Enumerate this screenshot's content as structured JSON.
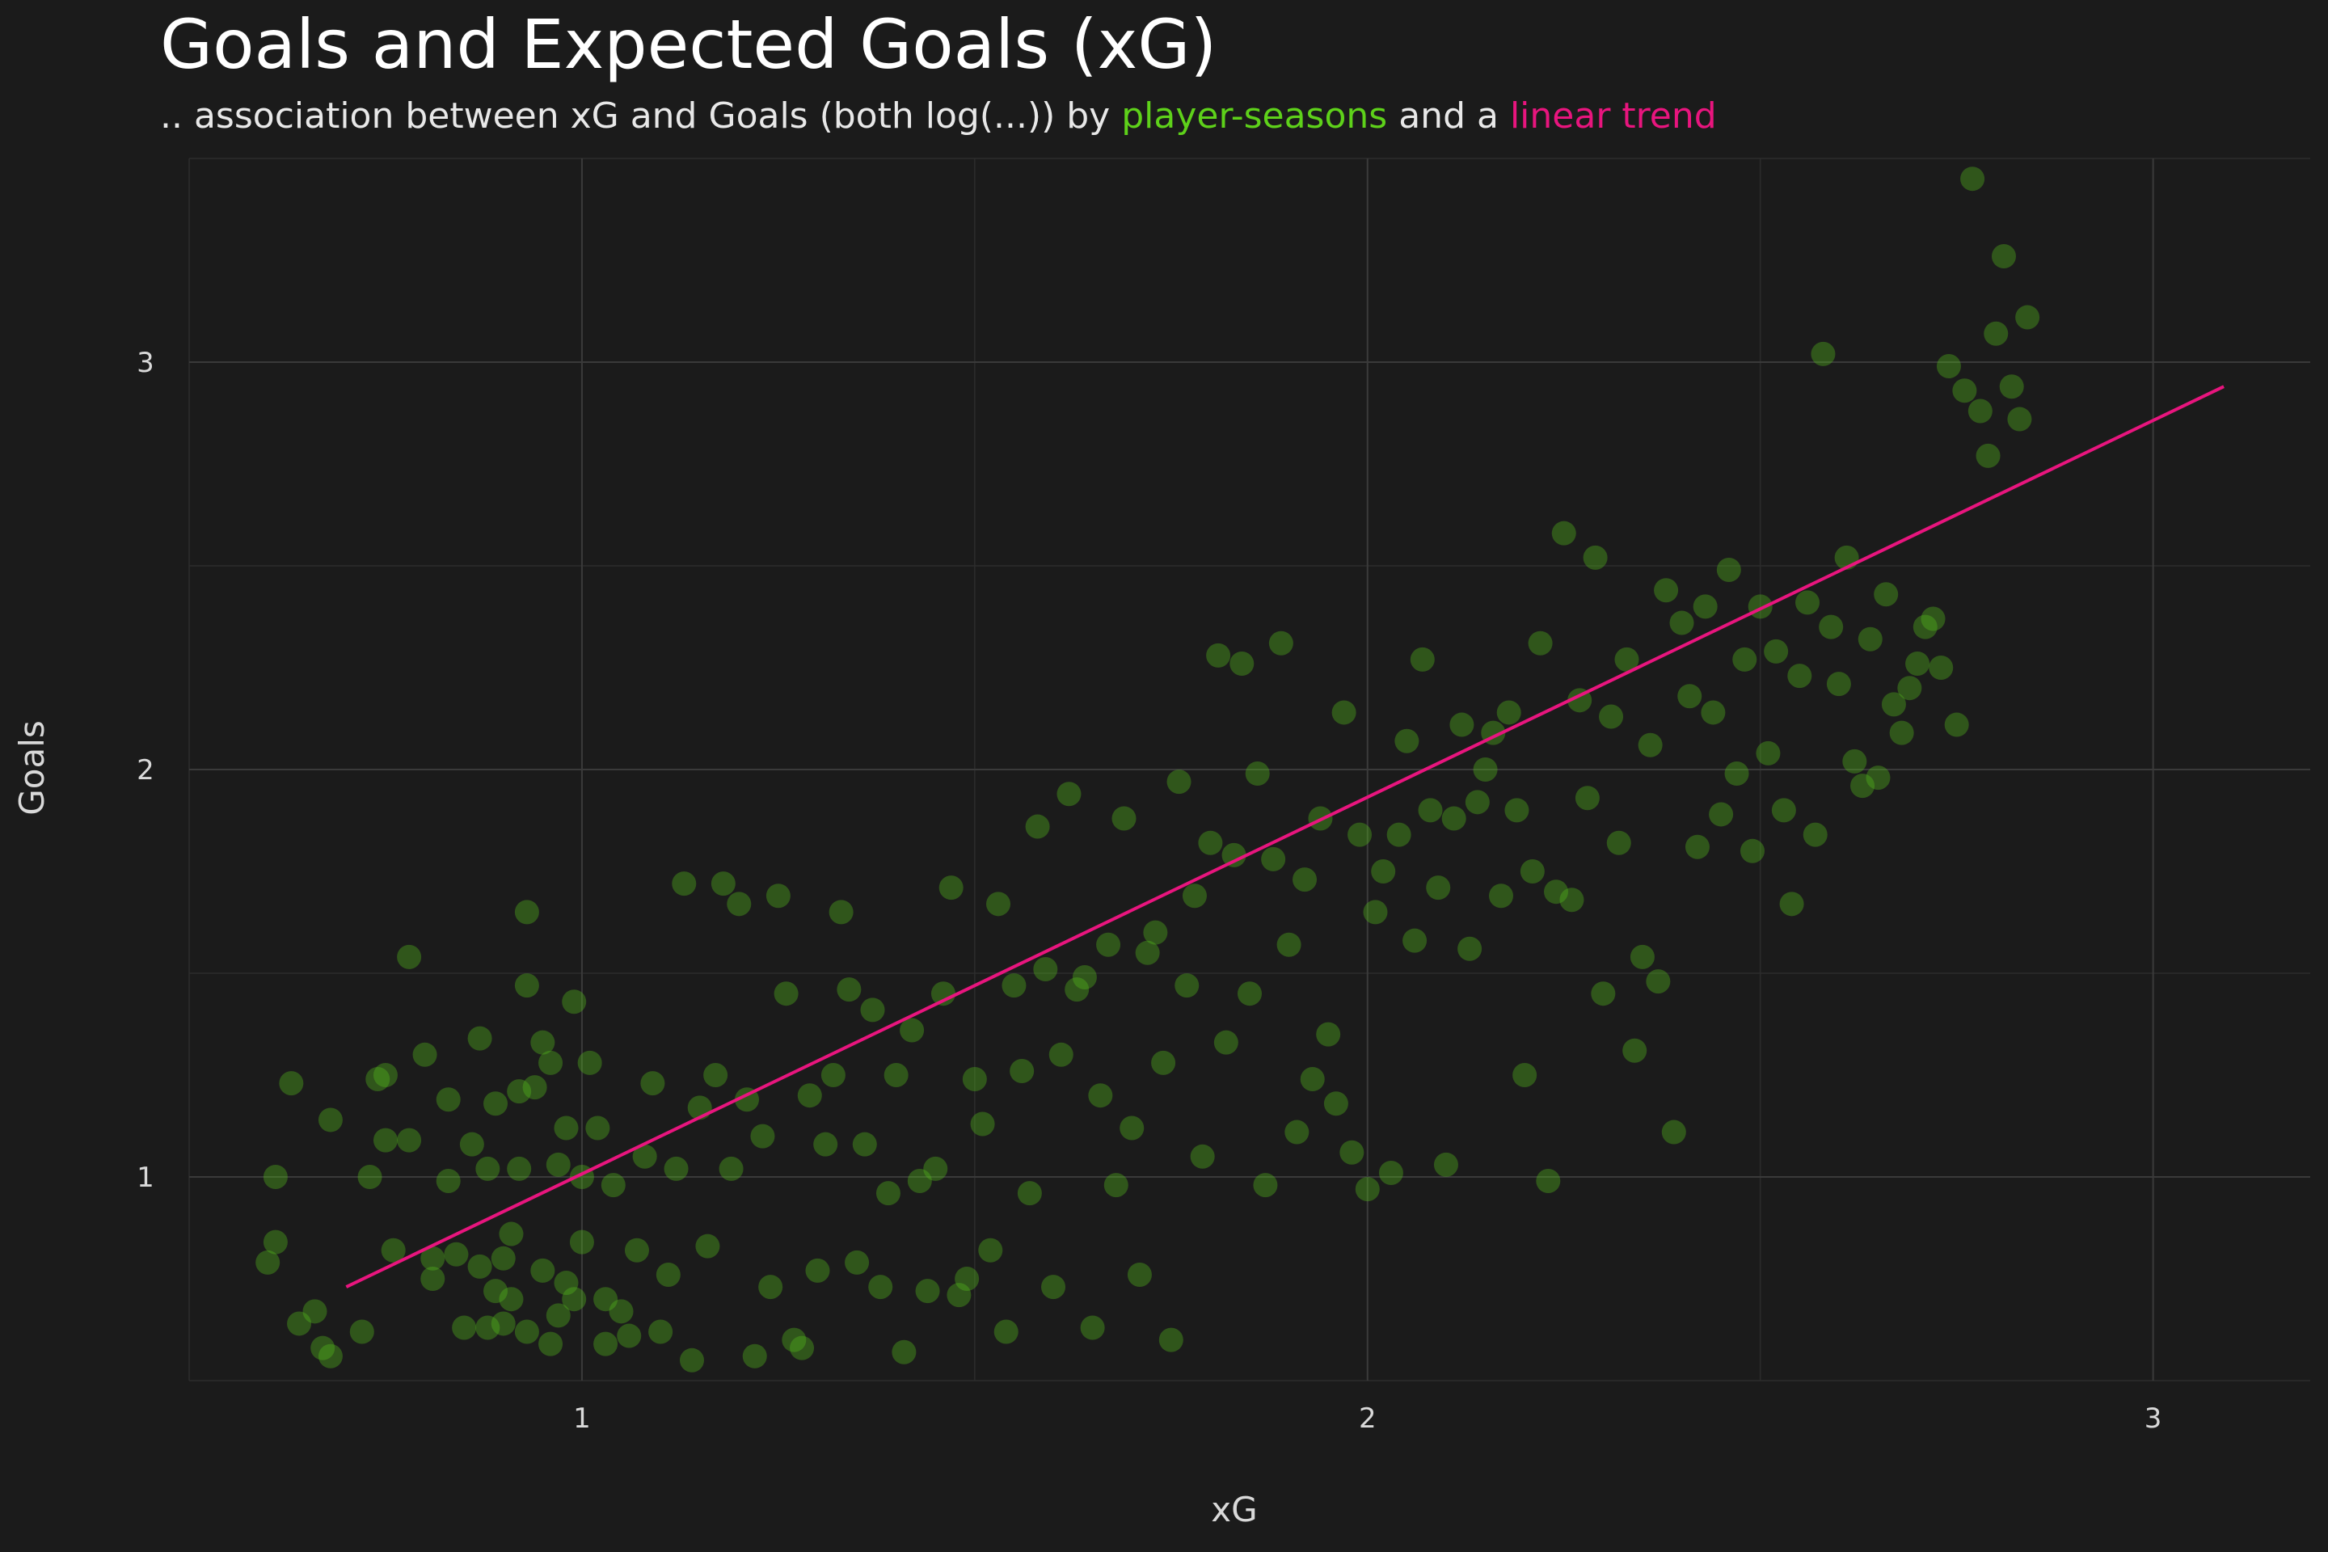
{
  "chart_data": {
    "type": "scatter",
    "title": "Goals and Expected Goals (xG)",
    "subtitle": {
      "prefix": ".. association between xG and Goals (both log(...)) by",
      "series_label": "player-seasons",
      "middle": "and a",
      "trend_label": "linear trend"
    },
    "xlabel": "xG",
    "ylabel": "Goals",
    "xlim": [
      0.5,
      3.2
    ],
    "ylim": [
      0.5,
      3.5
    ],
    "xticks": [
      1,
      2,
      3
    ],
    "yticks": [
      1,
      2,
      3
    ],
    "grid": true,
    "colors": {
      "points": "#54b81c",
      "trend": "#e8157e",
      "background": "#1b1b1b",
      "grid": "#3a3a3a"
    },
    "series": [
      {
        "name": "player-seasons",
        "points": [
          [
            0.6,
            0.79
          ],
          [
            0.61,
            0.84
          ],
          [
            0.61,
            1.0
          ],
          [
            0.63,
            1.23
          ],
          [
            0.64,
            0.64
          ],
          [
            0.66,
            0.67
          ],
          [
            0.67,
            0.58
          ],
          [
            0.68,
            0.56
          ],
          [
            0.68,
            1.14
          ],
          [
            0.72,
            0.62
          ],
          [
            0.73,
            1.0
          ],
          [
            0.74,
            1.24
          ],
          [
            0.75,
            1.25
          ],
          [
            0.75,
            1.09
          ],
          [
            0.76,
            0.82
          ],
          [
            0.78,
            1.09
          ],
          [
            0.78,
            1.54
          ],
          [
            0.8,
            1.3
          ],
          [
            0.81,
            0.8
          ],
          [
            0.81,
            0.75
          ],
          [
            0.83,
            1.19
          ],
          [
            0.83,
            0.99
          ],
          [
            0.84,
            0.81
          ],
          [
            0.85,
            0.63
          ],
          [
            0.86,
            1.08
          ],
          [
            0.87,
            1.34
          ],
          [
            0.87,
            0.78
          ],
          [
            0.88,
            1.02
          ],
          [
            0.88,
            0.63
          ],
          [
            0.89,
            1.18
          ],
          [
            0.89,
            0.72
          ],
          [
            0.9,
            0.64
          ],
          [
            0.9,
            0.8
          ],
          [
            0.91,
            0.7
          ],
          [
            0.91,
            0.86
          ],
          [
            0.92,
            1.21
          ],
          [
            0.92,
            1.02
          ],
          [
            0.93,
            1.65
          ],
          [
            0.93,
            1.47
          ],
          [
            0.93,
            0.62
          ],
          [
            0.94,
            1.22
          ],
          [
            0.95,
            1.33
          ],
          [
            0.95,
            0.77
          ],
          [
            0.96,
            0.59
          ],
          [
            0.96,
            1.28
          ],
          [
            0.97,
            1.03
          ],
          [
            0.97,
            0.66
          ],
          [
            0.98,
            0.74
          ],
          [
            0.98,
            1.12
          ],
          [
            0.99,
            1.43
          ],
          [
            0.99,
            0.7
          ],
          [
            1.0,
            0.84
          ],
          [
            1.0,
            1.0
          ],
          [
            1.01,
            1.28
          ],
          [
            1.02,
            1.12
          ],
          [
            1.03,
            0.7
          ],
          [
            1.03,
            0.59
          ],
          [
            1.04,
            0.98
          ],
          [
            1.05,
            0.67
          ],
          [
            1.06,
            0.61
          ],
          [
            1.07,
            0.82
          ],
          [
            1.08,
            1.05
          ],
          [
            1.09,
            1.23
          ],
          [
            1.1,
            0.62
          ],
          [
            1.11,
            0.76
          ],
          [
            1.12,
            1.02
          ],
          [
            1.13,
            1.72
          ],
          [
            1.14,
            0.55
          ],
          [
            1.15,
            1.17
          ],
          [
            1.16,
            0.83
          ],
          [
            1.17,
            1.25
          ],
          [
            1.18,
            1.72
          ],
          [
            1.19,
            1.02
          ],
          [
            1.2,
            1.67
          ],
          [
            1.21,
            1.19
          ],
          [
            1.22,
            0.56
          ],
          [
            1.23,
            1.1
          ],
          [
            1.24,
            0.73
          ],
          [
            1.25,
            1.69
          ],
          [
            1.26,
            1.45
          ],
          [
            1.27,
            0.6
          ],
          [
            1.28,
            0.58
          ],
          [
            1.29,
            1.2
          ],
          [
            1.3,
            0.77
          ],
          [
            1.31,
            1.08
          ],
          [
            1.32,
            1.25
          ],
          [
            1.33,
            1.65
          ],
          [
            1.34,
            1.46
          ],
          [
            1.35,
            0.79
          ],
          [
            1.36,
            1.08
          ],
          [
            1.37,
            1.41
          ],
          [
            1.38,
            0.73
          ],
          [
            1.39,
            0.96
          ],
          [
            1.4,
            1.25
          ],
          [
            1.41,
            0.57
          ],
          [
            1.42,
            1.36
          ],
          [
            1.43,
            0.99
          ],
          [
            1.44,
            0.72
          ],
          [
            1.45,
            1.02
          ],
          [
            1.46,
            1.45
          ],
          [
            1.47,
            1.71
          ],
          [
            1.48,
            0.71
          ],
          [
            1.49,
            0.75
          ],
          [
            1.5,
            1.24
          ],
          [
            1.51,
            1.13
          ],
          [
            1.52,
            0.82
          ],
          [
            1.53,
            1.67
          ],
          [
            1.54,
            0.62
          ],
          [
            1.55,
            1.47
          ],
          [
            1.56,
            1.26
          ],
          [
            1.57,
            0.96
          ],
          [
            1.58,
            1.86
          ],
          [
            1.59,
            1.51
          ],
          [
            1.6,
            0.73
          ],
          [
            1.61,
            1.3
          ],
          [
            1.62,
            1.94
          ],
          [
            1.63,
            1.46
          ],
          [
            1.64,
            1.49
          ],
          [
            1.65,
            0.63
          ],
          [
            1.66,
            1.2
          ],
          [
            1.67,
            1.57
          ],
          [
            1.68,
            0.98
          ],
          [
            1.69,
            1.88
          ],
          [
            1.7,
            1.12
          ],
          [
            1.71,
            0.76
          ],
          [
            1.72,
            1.55
          ],
          [
            1.73,
            1.6
          ],
          [
            1.74,
            1.28
          ],
          [
            1.75,
            0.6
          ],
          [
            1.76,
            1.97
          ],
          [
            1.77,
            1.47
          ],
          [
            1.78,
            1.69
          ],
          [
            1.79,
            1.05
          ],
          [
            1.8,
            1.82
          ],
          [
            1.81,
            2.28
          ],
          [
            1.82,
            1.33
          ],
          [
            1.83,
            1.79
          ],
          [
            1.84,
            2.26
          ],
          [
            1.85,
            1.45
          ],
          [
            1.86,
            1.99
          ],
          [
            1.87,
            0.98
          ],
          [
            1.88,
            1.78
          ],
          [
            1.89,
            2.31
          ],
          [
            1.9,
            1.57
          ],
          [
            1.91,
            1.11
          ],
          [
            1.92,
            1.73
          ],
          [
            1.93,
            1.24
          ],
          [
            1.94,
            1.88
          ],
          [
            1.95,
            1.35
          ],
          [
            1.96,
            1.18
          ],
          [
            1.97,
            2.14
          ],
          [
            1.98,
            1.06
          ],
          [
            1.99,
            1.84
          ],
          [
            2.0,
            0.97
          ],
          [
            2.01,
            1.65
          ],
          [
            2.02,
            1.75
          ],
          [
            2.03,
            1.01
          ],
          [
            2.04,
            1.84
          ],
          [
            2.05,
            2.07
          ],
          [
            2.06,
            1.58
          ],
          [
            2.07,
            2.27
          ],
          [
            2.08,
            1.9
          ],
          [
            2.09,
            1.71
          ],
          [
            2.1,
            1.03
          ],
          [
            2.11,
            1.88
          ],
          [
            2.12,
            2.11
          ],
          [
            2.13,
            1.56
          ],
          [
            2.14,
            1.92
          ],
          [
            2.15,
            2.0
          ],
          [
            2.16,
            2.09
          ],
          [
            2.17,
            1.69
          ],
          [
            2.18,
            2.14
          ],
          [
            2.19,
            1.9
          ],
          [
            2.2,
            1.25
          ],
          [
            2.21,
            1.75
          ],
          [
            2.22,
            2.31
          ],
          [
            2.23,
            0.99
          ],
          [
            2.24,
            1.7
          ],
          [
            2.25,
            2.58
          ],
          [
            2.26,
            1.68
          ],
          [
            2.27,
            2.17
          ],
          [
            2.28,
            1.93
          ],
          [
            2.29,
            2.52
          ],
          [
            2.3,
            1.45
          ],
          [
            2.31,
            2.13
          ],
          [
            2.32,
            1.82
          ],
          [
            2.33,
            2.27
          ],
          [
            2.34,
            1.31
          ],
          [
            2.35,
            1.54
          ],
          [
            2.36,
            2.06
          ],
          [
            2.37,
            1.48
          ],
          [
            2.38,
            2.44
          ],
          [
            2.39,
            1.11
          ],
          [
            2.4,
            2.36
          ],
          [
            2.41,
            2.18
          ],
          [
            2.42,
            1.81
          ],
          [
            2.43,
            2.4
          ],
          [
            2.44,
            2.14
          ],
          [
            2.45,
            1.89
          ],
          [
            2.46,
            2.49
          ],
          [
            2.47,
            1.99
          ],
          [
            2.48,
            2.27
          ],
          [
            2.49,
            1.8
          ],
          [
            2.5,
            2.4
          ],
          [
            2.51,
            2.04
          ],
          [
            2.52,
            2.29
          ],
          [
            2.53,
            1.9
          ],
          [
            2.54,
            1.67
          ],
          [
            2.55,
            2.23
          ],
          [
            2.56,
            2.41
          ],
          [
            2.57,
            1.84
          ],
          [
            2.58,
            3.02
          ],
          [
            2.59,
            2.35
          ],
          [
            2.6,
            2.21
          ],
          [
            2.61,
            2.52
          ],
          [
            2.62,
            2.02
          ],
          [
            2.63,
            1.96
          ],
          [
            2.64,
            2.32
          ],
          [
            2.65,
            1.98
          ],
          [
            2.66,
            2.43
          ],
          [
            2.67,
            2.16
          ],
          [
            2.68,
            2.09
          ],
          [
            2.69,
            2.2
          ],
          [
            2.7,
            2.26
          ],
          [
            2.71,
            2.35
          ],
          [
            2.72,
            2.37
          ],
          [
            2.73,
            2.25
          ],
          [
            2.74,
            2.99
          ],
          [
            2.75,
            2.11
          ],
          [
            2.76,
            2.93
          ],
          [
            2.77,
            3.45
          ],
          [
            2.78,
            2.88
          ],
          [
            2.79,
            2.77
          ],
          [
            2.8,
            3.07
          ],
          [
            2.81,
            3.26
          ],
          [
            2.82,
            2.94
          ],
          [
            2.83,
            2.86
          ],
          [
            2.84,
            3.11
          ]
        ]
      },
      {
        "name": "linear trend",
        "line": [
          [
            0.7,
            0.73
          ],
          [
            3.09,
            2.94
          ]
        ]
      }
    ]
  }
}
